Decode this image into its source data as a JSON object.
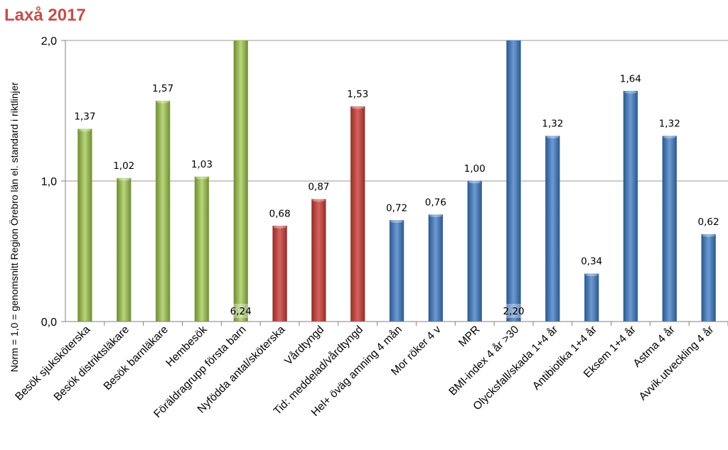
{
  "title": "Laxå 2017",
  "colors": {
    "title": "#c0504d",
    "green": "#9bbb59",
    "red": "#c0504d",
    "blue": "#4f81bd",
    "gridline": "#9a9a9a",
    "axis": "#808080"
  },
  "chart_data": {
    "type": "bar",
    "title": "Laxå 2017",
    "xlabel": "",
    "ylabel": "Norm = 1,0 = genomsnitt Region Örebro län el. standard i riktlinjer",
    "ylim": [
      0,
      2
    ],
    "yticks": [
      "0,0",
      "1,0",
      "2,0"
    ],
    "grid": true,
    "categories": [
      "Besök sjuksköterska",
      "Besök distriktsläkare",
      "Besök barnläkare",
      "Hembesök",
      "Föräldragrupp första barn",
      "Nyfödda antal/sköterska",
      "Vårdtyngd",
      "Tid: meddelad/vårdtyngd",
      "Hel+ öväg amning 4 mån",
      "Mor röker 4 v",
      "MPR",
      "BMI-index 4 år >30",
      "Olycksfall/skada 1+4 år",
      "Antibiotika 1+4 år",
      "Eksem 1+4 år",
      "Astma 4 år",
      "Avvik.utveckling 4 år"
    ],
    "values": [
      1.37,
      1.02,
      1.57,
      1.03,
      6.24,
      0.68,
      0.87,
      1.53,
      0.72,
      0.76,
      1.0,
      2.2,
      1.32,
      0.34,
      1.64,
      1.32,
      0.62
    ],
    "value_labels": [
      "1,37",
      "1,02",
      "1,57",
      "1,03",
      "6,24",
      "0,68",
      "0,87",
      "1,53",
      "0,72",
      "0,76",
      "1,00",
      "2,20",
      "1,32",
      "0,34",
      "1,64",
      "1,32",
      "0,62"
    ],
    "bar_colors": [
      "green",
      "green",
      "green",
      "green",
      "green",
      "red",
      "red",
      "red",
      "blue",
      "blue",
      "blue",
      "blue",
      "blue",
      "blue",
      "blue",
      "blue",
      "blue"
    ]
  }
}
